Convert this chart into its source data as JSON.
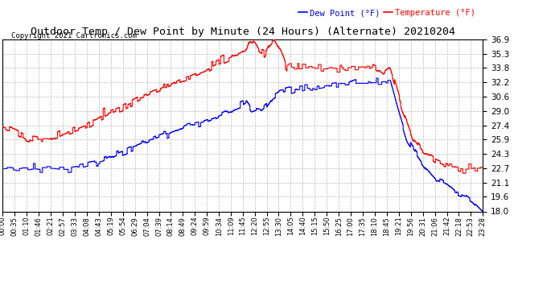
{
  "title": "Outdoor Temp / Dew Point by Minute (24 Hours) (Alternate) 20210204",
  "copyright": "Copyright 2021 Cartronics.com",
  "legend_blue": "Dew Point (°F)",
  "legend_red": "Temperature (°F)",
  "bg_color": "#ffffff",
  "plot_bg_color": "#ffffff",
  "grid_color": "#bbbbbb",
  "title_color": "#000000",
  "temp_color": "#ff0000",
  "dew_color": "#0000ff",
  "copyright_color": "#000000",
  "ylim_min": 18.0,
  "ylim_max": 36.9,
  "yticks": [
    18.0,
    19.6,
    21.1,
    22.7,
    24.3,
    25.9,
    27.4,
    29.0,
    30.6,
    32.2,
    33.8,
    35.3,
    36.9
  ],
  "xtick_labels": [
    "00:00",
    "00:35",
    "01:10",
    "01:46",
    "02:21",
    "02:57",
    "03:33",
    "04:08",
    "04:43",
    "05:19",
    "05:54",
    "06:29",
    "07:04",
    "07:39",
    "08:14",
    "08:49",
    "09:24",
    "09:59",
    "10:34",
    "11:09",
    "11:45",
    "12:20",
    "12:55",
    "13:30",
    "14:05",
    "14:40",
    "15:15",
    "15:50",
    "16:25",
    "17:00",
    "17:35",
    "18:10",
    "18:45",
    "19:21",
    "19:56",
    "20:31",
    "21:06",
    "21:42",
    "22:18",
    "22:53",
    "23:28"
  ],
  "n_minutes": 1440
}
